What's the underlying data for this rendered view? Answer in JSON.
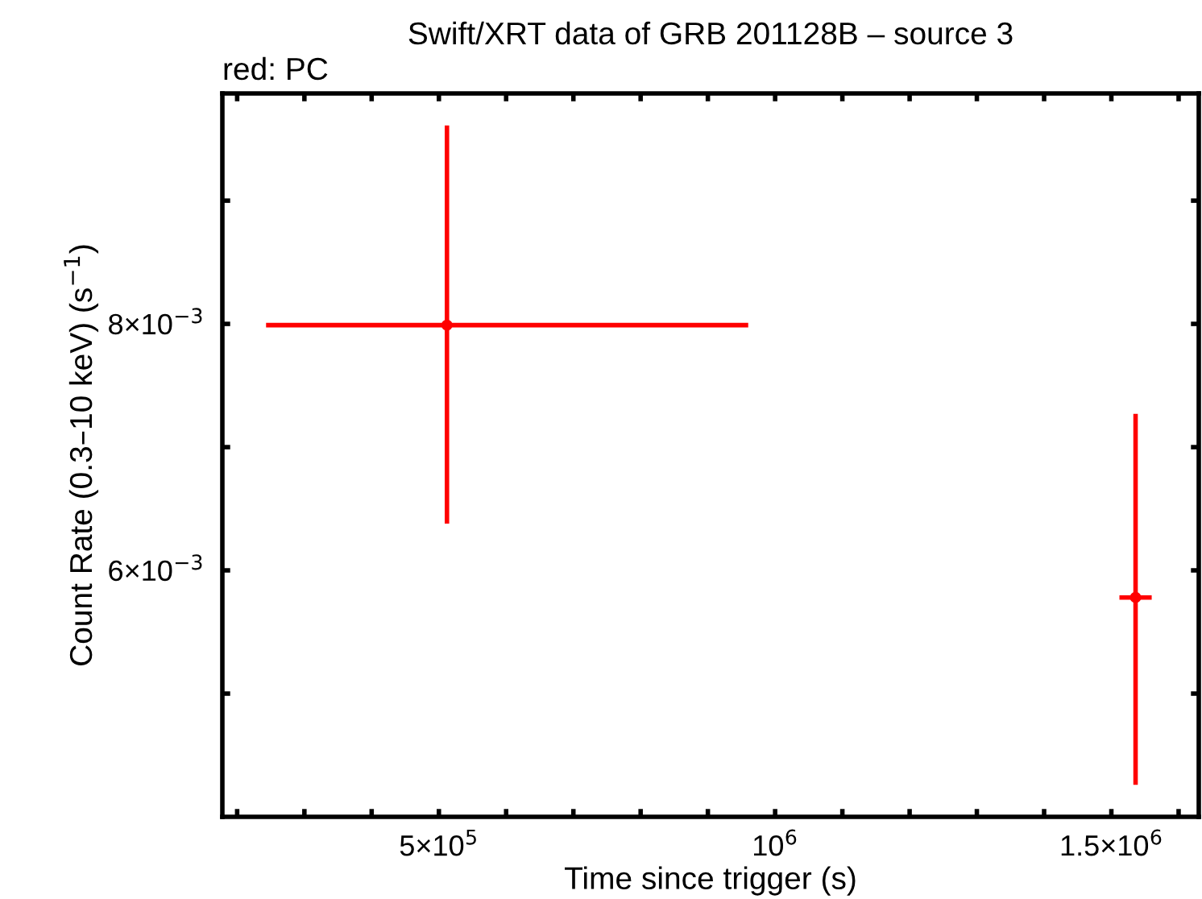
{
  "chart_data": {
    "type": "scatter",
    "title": "Swift/XRT data of GRB 201128B – source 3",
    "xlabel": "Time since trigger (s)",
    "ylabel": "Count Rate (0.3–10 keV) (s$^{−1}$)",
    "annotations": [
      "red: PC"
    ],
    "x": [
      512000,
      1536000
    ],
    "series": [
      {
        "color": "#ff0000",
        "values": [
          0.00799,
          0.00578
        ],
        "errors": [
          [
            0.00638,
            0.00961
          ],
          [
            0.00426,
            0.00727
          ]
        ],
        "xerrors": [
          [
            243000,
            960000
          ],
          [
            1512000,
            1560000
          ]
        ]
      }
    ],
    "marker": "circle",
    "xlim": [
      178000,
      1630000
    ],
    "xticks": [
      {
        "value": 200000,
        "label": null
      },
      {
        "value": 300000,
        "label": null
      },
      {
        "value": 400000,
        "label": null
      },
      {
        "value": 500000,
        "label": "5×10$^{5}$"
      },
      {
        "value": 600000,
        "label": null
      },
      {
        "value": 700000,
        "label": null
      },
      {
        "value": 800000,
        "label": null
      },
      {
        "value": 900000,
        "label": null
      },
      {
        "value": 1000000,
        "label": "10$^{6}$"
      },
      {
        "value": 1100000,
        "label": null
      },
      {
        "value": 1200000,
        "label": null
      },
      {
        "value": 1300000,
        "label": null
      },
      {
        "value": 1400000,
        "label": null
      },
      {
        "value": 1500000,
        "label": "1.5×10$^{6}$"
      },
      {
        "value": 1600000,
        "label": null
      }
    ],
    "ylim": [
      0.004,
      0.00987
    ],
    "yticks": [
      {
        "value": 0.005,
        "label": null
      },
      {
        "value": 0.006,
        "label": "6×10$^{−3}$"
      },
      {
        "value": 0.007,
        "label": null
      },
      {
        "value": 0.008,
        "label": "8×10$^{−3}$"
      },
      {
        "value": 0.009,
        "label": null
      }
    ],
    "grid": false,
    "legend": false
  }
}
